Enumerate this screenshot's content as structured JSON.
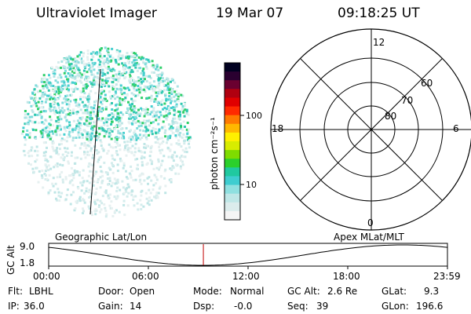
{
  "header": {
    "instrument": "Ultraviolet Imager",
    "date": "19 Mar 07",
    "time": "09:18:25 UT"
  },
  "colorbar": {
    "label": "photon cm⁻²s⁻¹",
    "ticks": [
      "100",
      "10"
    ],
    "colors": [
      "#f5f5f5",
      "#dcecec",
      "#bfe7e7",
      "#8fe0e0",
      "#3ecdd0",
      "#20c9a0",
      "#2bd02b",
      "#7fdc00",
      "#d8ec00",
      "#fff000",
      "#ffb800",
      "#ff7a00",
      "#ff2a00",
      "#e00000",
      "#b00010",
      "#6a0030",
      "#2a0030",
      "#000020"
    ]
  },
  "polar_plot": {
    "mlt_labels": {
      "top": "12",
      "left": "18",
      "right": "6",
      "bottom": "0"
    },
    "lat_labels": [
      "60",
      "70",
      "80"
    ]
  },
  "timeline": {
    "ylabel": "GC Alt",
    "y_ticks": [
      "9.0",
      "1.8"
    ],
    "left_title": "Geographic Lat/Lon",
    "right_title": "Apex MLat/MLT",
    "x_ticks": [
      "00:00",
      "06:00",
      "12:00",
      "18:00",
      "23:59"
    ],
    "marker_time_hours": 9.31
  },
  "status": {
    "flt_label": "Flt:",
    "flt_value": "LBHL",
    "door_label": "Door:",
    "door_value": "Open",
    "mode_label": "Mode:",
    "mode_value": "Normal",
    "gcalt_label": "GC Alt:",
    "gcalt_value": "2.6 Re",
    "glat_label": "GLat:",
    "glat_value": "9.3",
    "ip_label": "IP:",
    "ip_value": "36.0",
    "gain_label": "Gain:",
    "gain_value": "14",
    "dsp_label": "Dsp:",
    "dsp_value": "-0.0",
    "seq_label": "Seq:",
    "seq_value": "39",
    "glon_label": "GLon:",
    "glon_value": "196.6"
  }
}
